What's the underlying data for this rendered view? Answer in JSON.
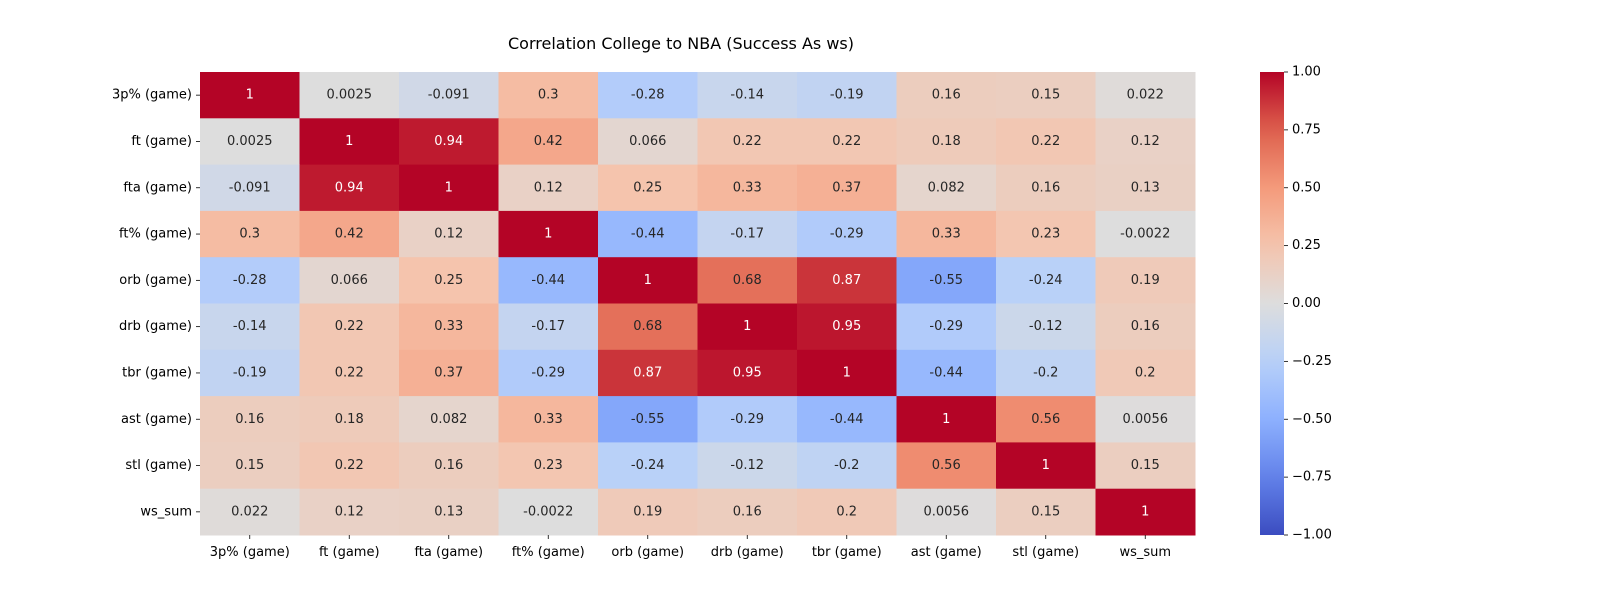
{
  "chart_data": {
    "type": "heatmap",
    "title": "Correlation College to NBA (Success As ws)",
    "row_labels": [
      "3p% (game)",
      "ft (game)",
      "fta (game)",
      "ft% (game)",
      "orb (game)",
      "drb (game)",
      "tbr (game)",
      "ast (game)",
      "stl (game)",
      "ws_sum"
    ],
    "col_labels": [
      "3p% (game)",
      "ft (game)",
      "fta (game)",
      "ft% (game)",
      "orb (game)",
      "drb (game)",
      "tbr (game)",
      "ast (game)",
      "stl (game)",
      "ws_sum"
    ],
    "values": [
      [
        1,
        0.0025,
        -0.091,
        0.3,
        -0.28,
        -0.14,
        -0.19,
        0.16,
        0.15,
        0.022
      ],
      [
        0.0025,
        1,
        0.94,
        0.42,
        0.066,
        0.22,
        0.22,
        0.18,
        0.22,
        0.12
      ],
      [
        -0.091,
        0.94,
        1,
        0.12,
        0.25,
        0.33,
        0.37,
        0.082,
        0.16,
        0.13
      ],
      [
        0.3,
        0.42,
        0.12,
        1,
        -0.44,
        -0.17,
        -0.29,
        0.33,
        0.23,
        -0.0022
      ],
      [
        -0.28,
        0.066,
        0.25,
        -0.44,
        1,
        0.68,
        0.87,
        -0.55,
        -0.24,
        0.19
      ],
      [
        -0.14,
        0.22,
        0.33,
        -0.17,
        0.68,
        1,
        0.95,
        -0.29,
        -0.12,
        0.16
      ],
      [
        -0.19,
        0.22,
        0.37,
        -0.29,
        0.87,
        0.95,
        1,
        -0.44,
        -0.2,
        0.2
      ],
      [
        0.16,
        0.18,
        0.082,
        0.33,
        -0.55,
        -0.29,
        -0.44,
        1,
        0.56,
        0.0056
      ],
      [
        0.15,
        0.22,
        0.16,
        0.23,
        -0.24,
        -0.12,
        -0.2,
        0.56,
        1,
        0.15
      ],
      [
        0.022,
        0.12,
        0.13,
        -0.0022,
        0.19,
        0.16,
        0.2,
        0.0056,
        0.15,
        1
      ]
    ],
    "annotation_labels": [
      [
        "1",
        "0.0025",
        "-0.091",
        "0.3",
        "-0.28",
        "-0.14",
        "-0.19",
        "0.16",
        "0.15",
        "0.022"
      ],
      [
        "0.0025",
        "1",
        "0.94",
        "0.42",
        "0.066",
        "0.22",
        "0.22",
        "0.18",
        "0.22",
        "0.12"
      ],
      [
        "-0.091",
        "0.94",
        "1",
        "0.12",
        "0.25",
        "0.33",
        "0.37",
        "0.082",
        "0.16",
        "0.13"
      ],
      [
        "0.3",
        "0.42",
        "0.12",
        "1",
        "-0.44",
        "-0.17",
        "-0.29",
        "0.33",
        "0.23",
        "-0.0022"
      ],
      [
        "-0.28",
        "0.066",
        "0.25",
        "-0.44",
        "1",
        "0.68",
        "0.87",
        "-0.55",
        "-0.24",
        "0.19"
      ],
      [
        "-0.14",
        "0.22",
        "0.33",
        "-0.17",
        "0.68",
        "1",
        "0.95",
        "-0.29",
        "-0.12",
        "0.16"
      ],
      [
        "-0.19",
        "0.22",
        "0.37",
        "-0.29",
        "0.87",
        "0.95",
        "1",
        "-0.44",
        "-0.2",
        "0.2"
      ],
      [
        "0.16",
        "0.18",
        "0.082",
        "0.33",
        "-0.55",
        "-0.29",
        "-0.44",
        "1",
        "0.56",
        "0.0056"
      ],
      [
        "0.15",
        "0.22",
        "0.16",
        "0.23",
        "-0.24",
        "-0.12",
        "-0.2",
        "0.56",
        "1",
        "0.15"
      ],
      [
        "0.022",
        "0.12",
        "0.13",
        "-0.0022",
        "0.19",
        "0.16",
        "0.2",
        "0.0056",
        "0.15",
        "1"
      ]
    ],
    "colormap": "coolwarm",
    "vmin": -1,
    "vmax": 1,
    "colorbar_ticks": [
      1,
      0.75,
      0.5,
      0.25,
      0,
      -0.25,
      -0.5,
      -0.75,
      -1
    ],
    "colorbar_tick_labels": [
      "1.00",
      "0.75",
      "0.50",
      "0.25",
      "0.00",
      "−0.25",
      "−0.50",
      "−0.75",
      "−1.00"
    ],
    "colors": {
      "low": "#3b4cc0",
      "mid": "#dddddd",
      "high": "#b40426"
    }
  }
}
